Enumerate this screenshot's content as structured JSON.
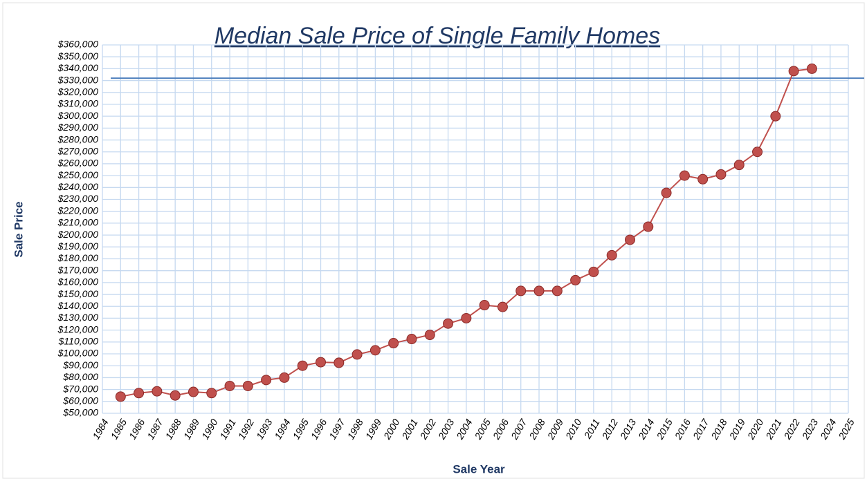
{
  "chart_data": {
    "type": "line",
    "title": "Median Sale Price of Single Family Homes",
    "x_label": "Sale Year",
    "y_label": "Sale Price",
    "x": [
      1985,
      1986,
      1987,
      1988,
      1989,
      1990,
      1991,
      1992,
      1993,
      1994,
      1995,
      1996,
      1997,
      1998,
      1999,
      2000,
      2001,
      2002,
      2003,
      2004,
      2005,
      2006,
      2007,
      2008,
      2009,
      2010,
      2011,
      2012,
      2013,
      2014,
      2015,
      2016,
      2017,
      2018,
      2019,
      2020,
      2021,
      2022,
      2023
    ],
    "series": [
      {
        "color": "#c0504d",
        "values": [
          64000,
          67000,
          68500,
          65000,
          68000,
          67000,
          73000,
          73000,
          78000,
          80000,
          90000,
          93000,
          92500,
          99500,
          103000,
          109000,
          112500,
          116000,
          125500,
          130000,
          141000,
          139500,
          153000,
          153000,
          153000,
          162000,
          169000,
          183000,
          196000,
          207000,
          235500,
          250000,
          247000,
          251000,
          259000,
          270000,
          300000,
          338000,
          340000
        ]
      }
    ],
    "reference_line": {
      "value": 332000,
      "color": "#4f81bd"
    },
    "xlim": [
      1984,
      2025
    ],
    "xticks": [
      1984,
      1985,
      1986,
      1987,
      1988,
      1989,
      1990,
      1991,
      1992,
      1993,
      1994,
      1995,
      1996,
      1997,
      1998,
      1999,
      2000,
      2001,
      2002,
      2003,
      2004,
      2005,
      2006,
      2007,
      2008,
      2009,
      2010,
      2011,
      2012,
      2013,
      2014,
      2015,
      2016,
      2017,
      2018,
      2019,
      2020,
      2021,
      2022,
      2023,
      2024,
      2025
    ],
    "ylim": [
      50000,
      360000
    ],
    "yticks": [
      {
        "value": 50000,
        "label": "$50,000"
      },
      {
        "value": 60000,
        "label": "$60,000"
      },
      {
        "value": 70000,
        "label": "$70,000"
      },
      {
        "value": 80000,
        "label": "$80,000"
      },
      {
        "value": 90000,
        "label": "$90,000"
      },
      {
        "value": 100000,
        "label": "$100,000"
      },
      {
        "value": 110000,
        "label": "$110,000"
      },
      {
        "value": 120000,
        "label": "$120,000"
      },
      {
        "value": 130000,
        "label": "$130,000"
      },
      {
        "value": 140000,
        "label": "$140,000"
      },
      {
        "value": 150000,
        "label": "$150,000"
      },
      {
        "value": 160000,
        "label": "$160,000"
      },
      {
        "value": 170000,
        "label": "$170,000"
      },
      {
        "value": 180000,
        "label": "$180,000"
      },
      {
        "value": 190000,
        "label": "$190,000"
      },
      {
        "value": 200000,
        "label": "$200,000"
      },
      {
        "value": 210000,
        "label": "$210,000"
      },
      {
        "value": 220000,
        "label": "$220,000"
      },
      {
        "value": 230000,
        "label": "$230,000"
      },
      {
        "value": 240000,
        "label": "$240,000"
      },
      {
        "value": 250000,
        "label": "$250,000"
      },
      {
        "value": 260000,
        "label": "$260,000"
      },
      {
        "value": 270000,
        "label": "$270,000"
      },
      {
        "value": 280000,
        "label": "$280,000"
      },
      {
        "value": 290000,
        "label": "$290,000"
      },
      {
        "value": 300000,
        "label": "$300,000"
      },
      {
        "value": 310000,
        "label": "$310,000"
      },
      {
        "value": 320000,
        "label": "$320,000"
      },
      {
        "value": 330000,
        "label": "$330,000"
      },
      {
        "value": 340000,
        "label": "$340,000"
      },
      {
        "value": 350000,
        "label": "$350,000"
      },
      {
        "value": 360000,
        "label": "$360,000"
      }
    ],
    "grid": true,
    "grid_color": "#c6d9f0"
  }
}
